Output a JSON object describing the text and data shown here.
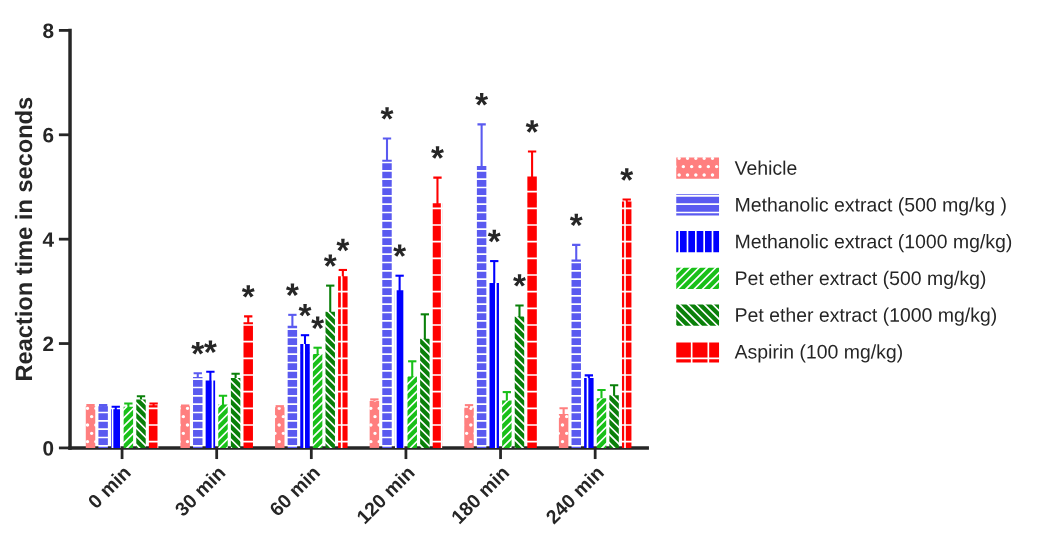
{
  "chart_data": {
    "type": "bar",
    "ylabel": "Reaction time in seconds",
    "categories": [
      "0 min",
      "30 min",
      "60 min",
      "120 min",
      "180 min",
      "240 min"
    ],
    "series": [
      {
        "name": "Vehicle",
        "color": "#ff7f7f",
        "values": [
          0.8,
          0.8,
          0.78,
          0.9,
          0.77,
          0.65
        ],
        "errors": [
          0.02,
          0.01,
          0.02,
          0.03,
          0.05,
          0.11
        ]
      },
      {
        "name": "Methanolic extract (500 mg/kg )",
        "color": "#5a5af0",
        "values": [
          0.8,
          1.36,
          2.34,
          5.52,
          5.4,
          3.61
        ],
        "errors": [
          0.02,
          0.07,
          0.21,
          0.41,
          0.8,
          0.28
        ],
        "value_labels": [
          null,
          "*",
          "*",
          "*",
          "*",
          "*"
        ]
      },
      {
        "name": "Methanolic extract (1000 mg/kg)",
        "color": "#0000ff",
        "values": [
          0.74,
          1.29,
          1.99,
          3.02,
          3.16,
          1.34
        ],
        "errors": [
          0.05,
          0.17,
          0.17,
          0.28,
          0.42,
          0.05
        ],
        "value_labels": [
          null,
          "*",
          "*",
          "*",
          "*",
          null
        ]
      },
      {
        "name": "Pet ether extract (500 mg/kg)",
        "color": "#19c019",
        "values": [
          0.79,
          0.83,
          1.8,
          1.37,
          0.91,
          0.95
        ],
        "errors": [
          0.06,
          0.17,
          0.12,
          0.29,
          0.16,
          0.16
        ],
        "value_labels": [
          null,
          null,
          "*",
          null,
          null,
          null
        ]
      },
      {
        "name": "Pet ether extract (1000 mg/kg)",
        "color": "#0a800a",
        "values": [
          0.93,
          1.34,
          2.61,
          2.09,
          2.52,
          1.01
        ],
        "errors": [
          0.06,
          0.08,
          0.5,
          0.47,
          0.21,
          0.19
        ],
        "value_labels": [
          null,
          null,
          "*",
          null,
          "*",
          null
        ]
      },
      {
        "name": "Aspirin (100 mg/kg)",
        "color": "#ff0000",
        "values": [
          0.82,
          2.41,
          3.29,
          4.69,
          5.2,
          4.72
        ],
        "errors": [
          0.03,
          0.11,
          0.12,
          0.49,
          0.48,
          0.04
        ],
        "value_labels": [
          null,
          "*",
          "*",
          "*",
          "*",
          "*"
        ]
      }
    ],
    "ylim": [
      0,
      8
    ],
    "yticks": [
      0,
      2,
      4,
      6,
      8
    ],
    "grid": false,
    "legend": "right"
  }
}
